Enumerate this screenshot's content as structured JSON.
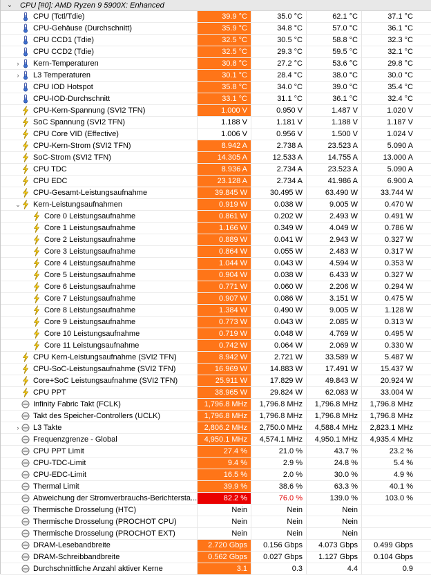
{
  "colors": {
    "current_highlight": "#ff7518",
    "current_alarm": "#ea0000",
    "alarm_text": "#e00000",
    "header_bg": "#e8e8e8"
  },
  "group": {
    "chevron_icon": "chevron-down-icon",
    "title": "CPU [#0]: AMD Ryzen 9 5900X: Enhanced"
  },
  "rows": [
    {
      "icon": "thermometer-icon",
      "indent": 0,
      "label": "CPU (Tctl/Tdie)",
      "current": "39.9 °C",
      "min": "35.0 °C",
      "max": "62.1 °C",
      "avg": "37.1 °C",
      "state": "hl"
    },
    {
      "icon": "thermometer-icon",
      "indent": 0,
      "label": "CPU-Gehäuse (Durchschnitt)",
      "current": "35.9 °C",
      "min": "34.8 °C",
      "max": "57.0 °C",
      "avg": "36.1 °C",
      "state": "hl"
    },
    {
      "icon": "thermometer-icon",
      "indent": 0,
      "label": "CPU CCD1 (Tdie)",
      "current": "32.5 °C",
      "min": "30.5 °C",
      "max": "58.8 °C",
      "avg": "32.3 °C",
      "state": "hl"
    },
    {
      "icon": "thermometer-icon",
      "indent": 0,
      "label": "CPU CCD2 (Tdie)",
      "current": "32.5 °C",
      "min": "29.3 °C",
      "max": "59.5 °C",
      "avg": "32.1 °C",
      "state": "hl"
    },
    {
      "icon": "thermometer-icon",
      "indent": 0,
      "expander": "›",
      "label": "Kern-Temperaturen",
      "current": "30.8 °C",
      "min": "27.2 °C",
      "max": "53.6 °C",
      "avg": "29.8 °C",
      "state": "hl"
    },
    {
      "icon": "thermometer-icon",
      "indent": 0,
      "expander": "›",
      "label": "L3 Temperaturen",
      "current": "30.1 °C",
      "min": "28.4 °C",
      "max": "38.0 °C",
      "avg": "30.0 °C",
      "state": "hl"
    },
    {
      "icon": "thermometer-icon",
      "indent": 0,
      "label": "CPU IOD Hotspot",
      "current": "35.8 °C",
      "min": "34.0 °C",
      "max": "39.0 °C",
      "avg": "35.4 °C",
      "state": "hl"
    },
    {
      "icon": "thermometer-icon",
      "indent": 0,
      "label": "CPU-IOD-Durchschnitt",
      "current": "33.1 °C",
      "min": "31.1 °C",
      "max": "36.1 °C",
      "avg": "32.4 °C",
      "state": "hl"
    },
    {
      "icon": "lightning-icon",
      "indent": 0,
      "label": "CPU-Kern-Spannung (SVI2 TFN)",
      "current": "1.000 V",
      "min": "0.950 V",
      "max": "1.487 V",
      "avg": "1.020 V",
      "state": "hl"
    },
    {
      "icon": "lightning-icon",
      "indent": 0,
      "label": "SoC Spannung (SVI2 TFN)",
      "current": "1.188 V",
      "min": "1.181 V",
      "max": "1.188 V",
      "avg": "1.187 V",
      "state": "plain"
    },
    {
      "icon": "lightning-icon",
      "indent": 0,
      "label": "CPU Core VID (Effective)",
      "current": "1.006 V",
      "min": "0.956 V",
      "max": "1.500 V",
      "avg": "1.024 V",
      "state": "plain"
    },
    {
      "icon": "lightning-icon",
      "indent": 0,
      "label": "CPU-Kern-Strom (SVI2 TFN)",
      "current": "8.942 A",
      "min": "2.738 A",
      "max": "23.523 A",
      "avg": "5.090 A",
      "state": "hl"
    },
    {
      "icon": "lightning-icon",
      "indent": 0,
      "label": "SoC-Strom (SVI2 TFN)",
      "current": "14.305 A",
      "min": "12.533 A",
      "max": "14.755 A",
      "avg": "13.000 A",
      "state": "hl"
    },
    {
      "icon": "lightning-icon",
      "indent": 0,
      "label": "CPU TDC",
      "current": "8.936 A",
      "min": "2.734 A",
      "max": "23.523 A",
      "avg": "5.090 A",
      "state": "hl"
    },
    {
      "icon": "lightning-icon",
      "indent": 0,
      "label": "CPU EDC",
      "current": "23.128 A",
      "min": "2.734 A",
      "max": "41.986 A",
      "avg": "6.900 A",
      "state": "hl"
    },
    {
      "icon": "lightning-icon",
      "indent": 0,
      "label": "CPU-Gesamt-Leistungsaufnahme",
      "current": "39.845 W",
      "min": "30.495 W",
      "max": "63.490 W",
      "avg": "33.744 W",
      "state": "hl"
    },
    {
      "icon": "lightning-icon",
      "indent": 0,
      "expander": "⌄",
      "label": "Kern-Leistungsaufnahmen",
      "current": "0.919 W",
      "min": "0.038 W",
      "max": "9.005 W",
      "avg": "0.470 W",
      "state": "hl"
    },
    {
      "icon": "lightning-icon",
      "indent": 1,
      "label": "Core 0 Leistungsaufnahme",
      "current": "0.861 W",
      "min": "0.202 W",
      "max": "2.493 W",
      "avg": "0.491 W",
      "state": "hl"
    },
    {
      "icon": "lightning-icon",
      "indent": 1,
      "label": "Core 1 Leistungsaufnahme",
      "current": "1.166 W",
      "min": "0.349 W",
      "max": "4.049 W",
      "avg": "0.786 W",
      "state": "hl"
    },
    {
      "icon": "lightning-icon",
      "indent": 1,
      "label": "Core 2 Leistungsaufnahme",
      "current": "0.889 W",
      "min": "0.041 W",
      "max": "2.943 W",
      "avg": "0.327 W",
      "state": "hl"
    },
    {
      "icon": "lightning-icon",
      "indent": 1,
      "label": "Core 3 Leistungsaufnahme",
      "current": "0.864 W",
      "min": "0.055 W",
      "max": "2.483 W",
      "avg": "0.317 W",
      "state": "hl"
    },
    {
      "icon": "lightning-icon",
      "indent": 1,
      "label": "Core 4 Leistungsaufnahme",
      "current": "1.044 W",
      "min": "0.043 W",
      "max": "4.594 W",
      "avg": "0.353 W",
      "state": "hl"
    },
    {
      "icon": "lightning-icon",
      "indent": 1,
      "label": "Core 5 Leistungsaufnahme",
      "current": "0.904 W",
      "min": "0.038 W",
      "max": "6.433 W",
      "avg": "0.327 W",
      "state": "hl"
    },
    {
      "icon": "lightning-icon",
      "indent": 1,
      "label": "Core 6 Leistungsaufnahme",
      "current": "0.771 W",
      "min": "0.060 W",
      "max": "2.206 W",
      "avg": "0.294 W",
      "state": "hl"
    },
    {
      "icon": "lightning-icon",
      "indent": 1,
      "label": "Core 7 Leistungsaufnahme",
      "current": "0.907 W",
      "min": "0.086 W",
      "max": "3.151 W",
      "avg": "0.475 W",
      "state": "hl"
    },
    {
      "icon": "lightning-icon",
      "indent": 1,
      "label": "Core 8 Leistungsaufnahme",
      "current": "1.384 W",
      "min": "0.490 W",
      "max": "9.005 W",
      "avg": "1.128 W",
      "state": "hl"
    },
    {
      "icon": "lightning-icon",
      "indent": 1,
      "label": "Core 9 Leistungsaufnahme",
      "current": "0.773 W",
      "min": "0.043 W",
      "max": "2.085 W",
      "avg": "0.313 W",
      "state": "hl"
    },
    {
      "icon": "lightning-icon",
      "indent": 1,
      "label": "Core 10 Leistungsaufnahme",
      "current": "0.719 W",
      "min": "0.048 W",
      "max": "4.769 W",
      "avg": "0.495 W",
      "state": "hl"
    },
    {
      "icon": "lightning-icon",
      "indent": 1,
      "label": "Core 11 Leistungsaufnahme",
      "current": "0.742 W",
      "min": "0.064 W",
      "max": "2.069 W",
      "avg": "0.330 W",
      "state": "hl"
    },
    {
      "icon": "lightning-icon",
      "indent": 0,
      "label": "CPU Kern-Leistungsaufnahme (SVI2 TFN)",
      "current": "8.942 W",
      "min": "2.721 W",
      "max": "33.589 W",
      "avg": "5.487 W",
      "state": "hl"
    },
    {
      "icon": "lightning-icon",
      "indent": 0,
      "label": "CPU-SoC-Leistungsaufnahme (SVI2 TFN)",
      "current": "16.969 W",
      "min": "14.883 W",
      "max": "17.491 W",
      "avg": "15.437 W",
      "state": "hl"
    },
    {
      "icon": "lightning-icon",
      "indent": 0,
      "label": "Core+SoC Leistungsaufnahme (SVI2 TFN)",
      "current": "25.911 W",
      "min": "17.829 W",
      "max": "49.843 W",
      "avg": "20.924 W",
      "state": "hl"
    },
    {
      "icon": "lightning-icon",
      "indent": 0,
      "label": "CPU PPT",
      "current": "38.965 W",
      "min": "29.824 W",
      "max": "62.083 W",
      "avg": "33.004 W",
      "state": "hl"
    },
    {
      "icon": "clock-icon",
      "indent": 0,
      "label": "Infinity Fabric Takt (FCLK)",
      "current": "1,796.8 MHz",
      "min": "1,796.8 MHz",
      "max": "1,796.8 MHz",
      "avg": "1,796.8 MHz",
      "state": "hl"
    },
    {
      "icon": "clock-icon",
      "indent": 0,
      "label": "Takt des Speicher-Controllers (UCLK)",
      "current": "1,796.8 MHz",
      "min": "1,796.8 MHz",
      "max": "1,796.8 MHz",
      "avg": "1,796.8 MHz",
      "state": "hl"
    },
    {
      "icon": "clock-icon",
      "indent": 0,
      "expander": "›",
      "label": "L3 Takte",
      "current": "2,806.2 MHz",
      "min": "2,750.0 MHz",
      "max": "4,588.4 MHz",
      "avg": "2,823.1 MHz",
      "state": "hl"
    },
    {
      "icon": "clock-icon",
      "indent": 0,
      "label": "Frequenzgrenze - Global",
      "current": "4,950.1 MHz",
      "min": "4,574.1 MHz",
      "max": "4,950.1 MHz",
      "avg": "4,935.4 MHz",
      "state": "hl"
    },
    {
      "icon": "clock-icon",
      "indent": 0,
      "label": "CPU PPT Limit",
      "current": "27.4 %",
      "min": "21.0 %",
      "max": "43.7 %",
      "avg": "23.2 %",
      "state": "hl"
    },
    {
      "icon": "clock-icon",
      "indent": 0,
      "label": "CPU-TDC-Limit",
      "current": "9.4 %",
      "min": "2.9 %",
      "max": "24.8 %",
      "avg": "5.4 %",
      "state": "hl"
    },
    {
      "icon": "clock-icon",
      "indent": 0,
      "label": "CPU-EDC-Limit",
      "current": "16.5 %",
      "min": "2.0 %",
      "max": "30.0 %",
      "avg": "4.9 %",
      "state": "hl"
    },
    {
      "icon": "clock-icon",
      "indent": 0,
      "label": "Thermal Limit",
      "current": "39.9 %",
      "min": "38.6 %",
      "max": "63.3 %",
      "avg": "40.1 %",
      "state": "hl"
    },
    {
      "icon": "clock-icon",
      "indent": 0,
      "label": "Abweichung der Stromverbrauchs-Berichtersta...",
      "current": "82.2 %",
      "min": "76.0 %",
      "max": "139.0 %",
      "avg": "103.0 %",
      "state": "alarm"
    },
    {
      "icon": "clock-icon",
      "indent": 0,
      "label": "Thermische Drosselung (HTC)",
      "current": "Nein",
      "min": "Nein",
      "max": "Nein",
      "avg": "",
      "state": "plain"
    },
    {
      "icon": "clock-icon",
      "indent": 0,
      "label": "Thermische Drosselung (PROCHOT CPU)",
      "current": "Nein",
      "min": "Nein",
      "max": "Nein",
      "avg": "",
      "state": "plain"
    },
    {
      "icon": "clock-icon",
      "indent": 0,
      "label": "Thermische Drosselung (PROCHOT EXT)",
      "current": "Nein",
      "min": "Nein",
      "max": "Nein",
      "avg": "",
      "state": "plain"
    },
    {
      "icon": "clock-icon",
      "indent": 0,
      "label": "DRAM-Lesebandbreite",
      "current": "2.720 Gbps",
      "min": "0.156 Gbps",
      "max": "4.073 Gbps",
      "avg": "0.499 Gbps",
      "state": "hl"
    },
    {
      "icon": "clock-icon",
      "indent": 0,
      "label": "DRAM-Schreibbandbreite",
      "current": "0.562 Gbps",
      "min": "0.027 Gbps",
      "max": "1.127 Gbps",
      "avg": "0.104 Gbps",
      "state": "hl"
    },
    {
      "icon": "clock-icon",
      "indent": 0,
      "label": "Durchschnittliche Anzahl aktiver Kerne",
      "current": "3.1",
      "min": "0.3",
      "max": "4.4",
      "avg": "0.9",
      "state": "hl"
    }
  ]
}
